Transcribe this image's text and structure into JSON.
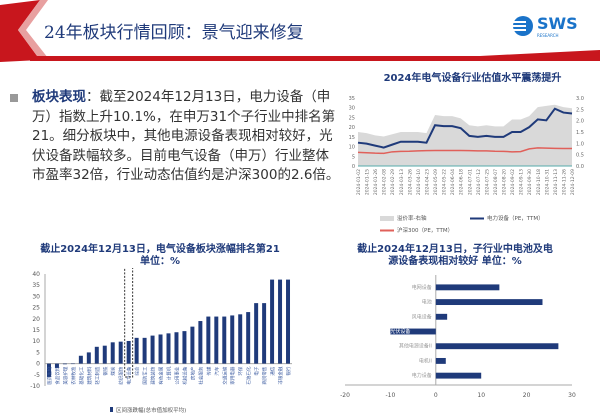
{
  "header": {
    "title": "24年板块行情回顾：景气迎来修复",
    "logo": "SWS",
    "logo_sub": "RESEARCH",
    "accent": "#c8161d",
    "title_color": "#1f3a7a"
  },
  "bullet": {
    "keyword": "板块表现",
    "text": "：截至2024年12月13日，电力设备（申万）指数上升10.1%，在申万31个子行业中排名第21。细分板块中，其他电源设备表现相对较好，光伏设备跌幅较多。目前电气设备（申万）行业整体市盈率32倍，行业动态估值约是沪深300的2.6倍。"
  },
  "chart_data": [
    {
      "type": "line",
      "title": "2024年电气设备行业估值水平震荡提升",
      "x": [
        "2024-01-02",
        "2024-01-15",
        "2024-01-26",
        "2024-02-08",
        "2024-02-29",
        "2024-03-13",
        "2024-03-26",
        "2024-04-10",
        "2024-04-23",
        "2024-05-09",
        "2024-05-22",
        "2024-06-04",
        "2024-06-18",
        "2024-07-01",
        "2024-07-12",
        "2024-07-25",
        "2024-08-07",
        "2024-08-20",
        "2024-09-02",
        "2024-09-13",
        "2024-09-30",
        "2024-10-18",
        "2024-10-31",
        "2024-11-13",
        "2024-11-26",
        "2024-12-09"
      ],
      "ylim_left": [
        0,
        35
      ],
      "ylim_right": [
        0,
        3.0
      ],
      "series": [
        {
          "name": "溢价率-右轴",
          "type": "area",
          "axis": "right",
          "color": "#d9d9d9",
          "values": [
            1.5,
            1.45,
            1.35,
            1.3,
            1.4,
            1.5,
            1.5,
            1.5,
            1.45,
            2.25,
            2.2,
            2.2,
            2.1,
            1.8,
            1.75,
            1.8,
            1.75,
            1.75,
            2.05,
            2.05,
            2.2,
            2.6,
            2.65,
            2.7,
            2.6,
            2.55
          ]
        },
        {
          "name": "电力设备（PE，TTM）",
          "type": "line",
          "axis": "left",
          "color": "#1f3a7a",
          "values": [
            12,
            11.5,
            10.5,
            9.5,
            11,
            12.5,
            12.5,
            12.5,
            12,
            21,
            20.5,
            20.5,
            19.5,
            15.5,
            15,
            15.5,
            15,
            15,
            17.5,
            17.5,
            20,
            24,
            23.5,
            29.5,
            27.5,
            27
          ]
        },
        {
          "name": "沪深300（PE，TTM）",
          "type": "line",
          "axis": "left",
          "color": "#e0605a",
          "values": [
            7,
            6.8,
            6.6,
            6.5,
            7.3,
            7.5,
            7.6,
            7.8,
            7.9,
            8,
            8,
            8,
            8,
            7.9,
            7.8,
            7.8,
            7.6,
            7.5,
            7.3,
            7.4,
            8.8,
            9.3,
            9.2,
            9.1,
            9,
            9
          ]
        }
      ],
      "legend": "bottom"
    },
    {
      "type": "bar",
      "title": "截止2024年12月13日，电气设备板块涨幅排名第21",
      "subtitle": "单位：%",
      "ylim": [
        -10,
        40
      ],
      "yticks": [
        -10,
        -5,
        0,
        5,
        10,
        15,
        20,
        25,
        30,
        35,
        40
      ],
      "categories": [
        "医药生物",
        "食品饮料",
        "美容护理",
        "农林牧渔",
        "基础化工",
        "建筑材料",
        "轻工制造",
        "钢铁",
        "煤炭",
        "纺织服饰",
        "电力设备",
        "综合",
        "国防军工",
        "建筑装饰",
        "有色金属",
        "计算机",
        "公用事业",
        "机械设备",
        "房地产",
        "社会服务",
        "传媒",
        "汽车",
        "交通运输",
        "家用电器",
        "环保",
        "石油石化",
        "电子",
        "商贸零售",
        "通信",
        "非银金融",
        "银行"
      ],
      "values": [
        -6,
        -2,
        -0.3,
        -0.2,
        3.5,
        5,
        7.5,
        8,
        9.5,
        9.8,
        10.1,
        11.5,
        11.5,
        12.5,
        13,
        13.5,
        14,
        14.5,
        16.5,
        19,
        21,
        21,
        21,
        21.5,
        22,
        23,
        27,
        27,
        37.5,
        37.5,
        37.5
      ],
      "highlight": "电力设备",
      "legend": "区间涨跌幅(总市值加权平均)",
      "color": "#1f3a7a"
    },
    {
      "type": "bar",
      "orientation": "horizontal",
      "title": "截止2024年12月13日，子行业中电池及电源设备表现相对较好 单位：%",
      "categories": [
        "电网设备",
        "电池",
        "风电设备",
        "光伏设备",
        "其他电源设备II",
        "电机II",
        "电力设备"
      ],
      "values": [
        14,
        23.5,
        2.5,
        -10,
        27,
        2.2,
        10
      ],
      "xlim": [
        -20,
        30
      ],
      "xticks": [
        -20,
        -10,
        0,
        10,
        20,
        30
      ],
      "color": "#1f3a7a"
    }
  ]
}
